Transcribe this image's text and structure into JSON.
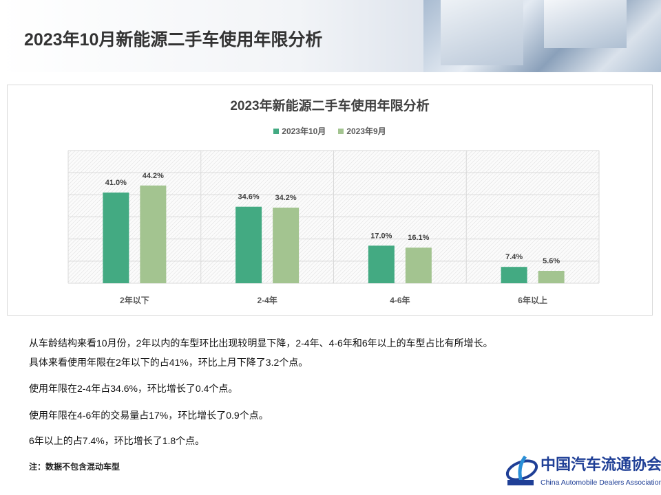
{
  "page": {
    "title": "2023年10月新能源二手车使用年限分析"
  },
  "chart_data": {
    "type": "bar",
    "title": "2023年新能源二手车使用年限分析",
    "categories": [
      "2年以下",
      "2-4年",
      "4-6年",
      "6年以上"
    ],
    "series": [
      {
        "name": "2023年10月",
        "values": [
          41.0,
          34.6,
          17.0,
          7.4
        ],
        "labels": [
          "41.0%",
          "34.6%",
          "17.0%",
          "7.4%"
        ],
        "color": "#43aa82"
      },
      {
        "name": "2023年9月",
        "values": [
          44.2,
          34.2,
          16.1,
          5.6
        ],
        "labels": [
          "44.2%",
          "34.2%",
          "16.1%",
          "5.6%"
        ],
        "color": "#a3c490"
      }
    ],
    "ylim": [
      0,
      60
    ],
    "ytick_step": 10,
    "y_axis_labels_visible": false,
    "grid": true,
    "background": "hatched",
    "legend_position": "top",
    "xlabel": "",
    "ylabel": ""
  },
  "paragraphs": [
    "从车龄结构来看10月份，2年以内的车型环比出现较明显下降，2-4年、4-6年和6年以上的车型占比有所增长。",
    "具体来看使用年限在2年以下的占41%，环比上月下降了3.2个点。",
    "使用年限在2-4年占34.6%，环比增长了0.4个点。",
    "使用年限在4-6年的交易量占17%，环比增长了0.9个点。",
    "6年以上的占7.4%，环比增长了1.8个点。"
  ],
  "note": "注：数据不包含混动车型",
  "logo": {
    "cn": "中国汽车流通协会",
    "en": "China Automobile Dealers Association",
    "mark": "CADA",
    "color": "#1f3f96"
  }
}
